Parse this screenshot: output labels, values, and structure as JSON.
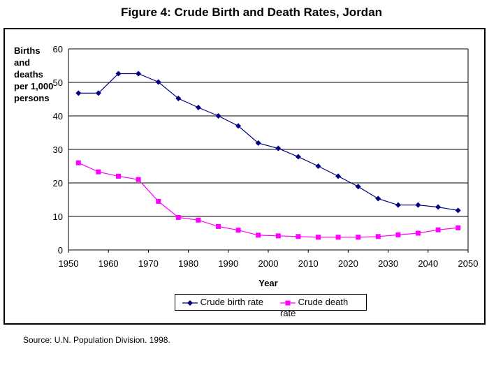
{
  "title": "Figure 4: Crude Birth and Death Rates, Jordan",
  "source": "Source: U.N. Population Division. 1998.",
  "chart_data": {
    "type": "line",
    "title": "Figure 4: Crude Birth and Death Rates, Jordan",
    "xlabel": "Year",
    "ylabel_lines": [
      "Births",
      "and",
      "deaths",
      "per 1,000",
      "persons"
    ],
    "xlim": [
      1950,
      2050
    ],
    "ylim": [
      0,
      60
    ],
    "xticks": [
      1950,
      1960,
      1970,
      1980,
      1990,
      2000,
      2010,
      2020,
      2030,
      2040,
      2050
    ],
    "yticks": [
      0,
      10,
      20,
      30,
      40,
      50,
      60
    ],
    "grid": "horizontal",
    "legend_position": "bottom-center",
    "x": [
      1952.5,
      1957.5,
      1962.5,
      1967.5,
      1972.5,
      1977.5,
      1982.5,
      1987.5,
      1992.5,
      1997.5,
      2002.5,
      2007.5,
      2012.5,
      2017.5,
      2022.5,
      2027.5,
      2032.5,
      2037.5,
      2042.5,
      2047.5
    ],
    "series": [
      {
        "name": "Crude birth rate",
        "color": "#000080",
        "marker": "diamond",
        "values": [
          46.8,
          46.8,
          52.6,
          52.6,
          50.1,
          45.2,
          42.5,
          40.0,
          37.0,
          31.9,
          30.3,
          27.8,
          25.0,
          22.0,
          18.9,
          15.3,
          13.4,
          13.4,
          12.8,
          11.8
        ]
      },
      {
        "name": "Crude death rate",
        "color": "#ff00ff",
        "marker": "square",
        "values": [
          26.0,
          23.3,
          22.0,
          21.0,
          14.5,
          9.7,
          8.9,
          7.0,
          5.9,
          4.4,
          4.2,
          4.0,
          3.8,
          3.8,
          3.8,
          4.0,
          4.5,
          5.0,
          6.0,
          6.6
        ]
      }
    ]
  }
}
